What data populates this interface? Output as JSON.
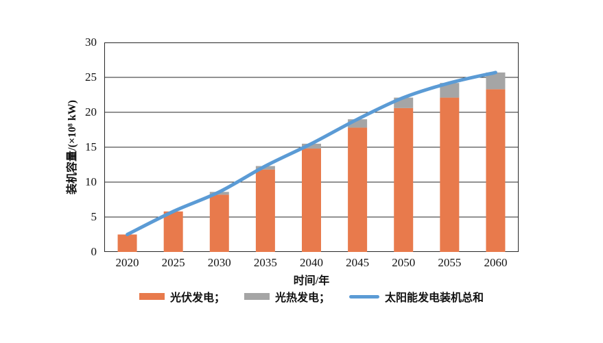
{
  "chart_data": {
    "type": "bar",
    "stacked": true,
    "title": "",
    "xlabel": "时间/年",
    "ylabel": "装机容量/(×10⁸ kW)",
    "categories": [
      "2020",
      "2025",
      "2030",
      "2035",
      "2040",
      "2045",
      "2050",
      "2055",
      "2060"
    ],
    "series": [
      {
        "name": "光伏发电",
        "type": "bar",
        "color": "#E87A4C",
        "values": [
          2.5,
          5.8,
          8.2,
          11.8,
          14.8,
          17.8,
          20.6,
          22.1,
          23.3
        ]
      },
      {
        "name": "光热发电",
        "type": "bar",
        "color": "#A5A5A5",
        "values": [
          0,
          0,
          0.4,
          0.5,
          0.7,
          1.2,
          1.5,
          2.1,
          2.4
        ]
      },
      {
        "name": "太阳能发电装机总和",
        "type": "line",
        "color": "#5B9BD5",
        "values": [
          2.5,
          5.8,
          8.6,
          12.3,
          15.5,
          19.0,
          22.1,
          24.2,
          25.7
        ]
      }
    ],
    "ylim": [
      0,
      30
    ],
    "ytick_step": 5,
    "grid": "horizontal",
    "legend_position": "bottom"
  },
  "axes": {
    "y_ticks": [
      "0",
      "5",
      "10",
      "15",
      "20",
      "25",
      "30"
    ]
  },
  "legend": {
    "items": [
      {
        "label": "光伏发电；",
        "swatch": "bar",
        "color": "#E87A4C"
      },
      {
        "label": "光热发电；",
        "swatch": "bar",
        "color": "#A5A5A5"
      },
      {
        "label": "太阳能发电装机总和",
        "swatch": "line",
        "color": "#5B9BD5"
      }
    ]
  },
  "style": {
    "background": "#ffffff",
    "grid_color": "#262626",
    "text_color": "#111111",
    "pv_color": "#E87A4C",
    "csp_color": "#A5A5A5",
    "line_color": "#5B9BD5"
  }
}
